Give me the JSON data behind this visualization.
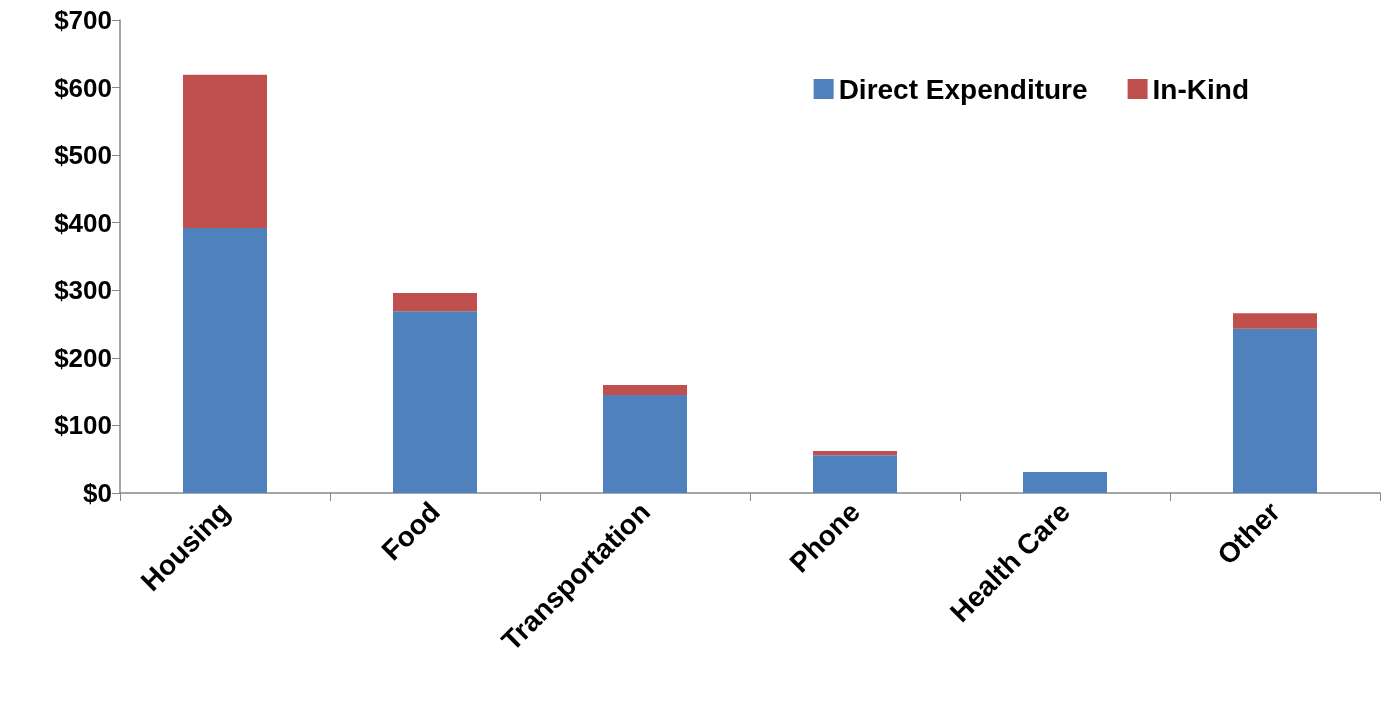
{
  "chart_data": {
    "type": "bar",
    "stacked": true,
    "categories": [
      "Housing",
      "Food",
      "Transportation",
      "Phone",
      "Health Care",
      "Other"
    ],
    "series": [
      {
        "name": "Direct Expenditure",
        "color": "#4f81bd",
        "values": [
          392,
          269,
          145,
          56,
          31,
          243
        ]
      },
      {
        "name": "In-Kind",
        "color": "#c0504d",
        "values": [
          227,
          27,
          15,
          6,
          0,
          23
        ]
      }
    ],
    "ylim": [
      0,
      700
    ],
    "yticks": [
      {
        "value": 0,
        "label": "$0"
      },
      {
        "value": 100,
        "label": "$100"
      },
      {
        "value": 200,
        "label": "$200"
      },
      {
        "value": 300,
        "label": "$300"
      },
      {
        "value": 400,
        "label": "$400"
      },
      {
        "value": 500,
        "label": "$500"
      },
      {
        "value": 600,
        "label": "$600"
      },
      {
        "value": 700,
        "label": "$700"
      }
    ],
    "grid": false,
    "legend": "top right"
  }
}
